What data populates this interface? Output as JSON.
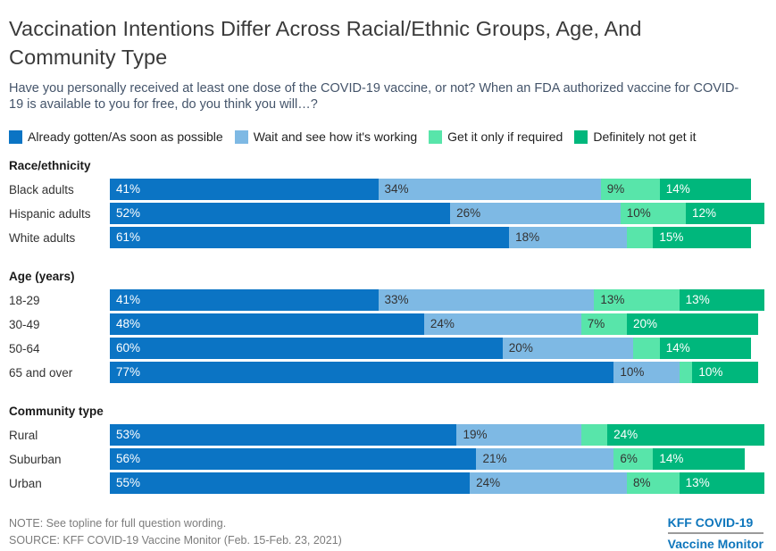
{
  "header": {
    "title": "Vaccination Intentions Differ Across Racial/Ethnic Groups, Age, And Community Type",
    "subtitle": "Have you personally received at least one dose of the COVID-19 vaccine, or not? When an FDA authorized vaccine for COVID-19 is available to you for free, do you think you will…?"
  },
  "chart_data": {
    "type": "bar",
    "orientation": "horizontal",
    "stacked": true,
    "x_max": 100,
    "legend_position": "top",
    "series": [
      {
        "name": "Already gotten/As soon as possible",
        "color": "#0b74c4",
        "text_color": "#ffffff"
      },
      {
        "name": "Wait and see how it's working",
        "color": "#7eb9e4",
        "text_color": "#333333"
      },
      {
        "name": "Get it only if required",
        "color": "#58e5aa",
        "text_color": "#333333"
      },
      {
        "name": "Definitely not get it",
        "color": "#00b77c",
        "text_color": "#ffffff"
      }
    ],
    "groups": [
      {
        "label": "Race/ethnicity",
        "rows": [
          {
            "label": "Black adults",
            "values": [
              41,
              34,
              9,
              14
            ],
            "labels": [
              "41%",
              "34%",
              "9%",
              "14%"
            ]
          },
          {
            "label": "Hispanic adults",
            "values": [
              52,
              26,
              10,
              12
            ],
            "labels": [
              "52%",
              "26%",
              "10%",
              "12%"
            ]
          },
          {
            "label": "White adults",
            "values": [
              61,
              18,
              4,
              15
            ],
            "labels": [
              "61%",
              "18%",
              "",
              "15%"
            ]
          }
        ]
      },
      {
        "label": "Age (years)",
        "rows": [
          {
            "label": "18-29",
            "values": [
              41,
              33,
              13,
              13
            ],
            "labels": [
              "41%",
              "33%",
              "13%",
              "13%"
            ]
          },
          {
            "label": "30-49",
            "values": [
              48,
              24,
              7,
              20
            ],
            "labels": [
              "48%",
              "24%",
              "7%",
              "20%"
            ]
          },
          {
            "label": "50-64",
            "values": [
              60,
              20,
              4,
              14
            ],
            "labels": [
              "60%",
              "20%",
              "",
              "14%"
            ]
          },
          {
            "label": "65 and over",
            "values": [
              77,
              10,
              2,
              10
            ],
            "labels": [
              "77%",
              "10%",
              "",
              "10%"
            ]
          }
        ]
      },
      {
        "label": "Community type",
        "rows": [
          {
            "label": "Rural",
            "values": [
              53,
              19,
              4,
              24
            ],
            "labels": [
              "53%",
              "19%",
              "",
              "24%"
            ]
          },
          {
            "label": "Suburban",
            "values": [
              56,
              21,
              6,
              14
            ],
            "labels": [
              "56%",
              "21%",
              "6%",
              "14%"
            ]
          },
          {
            "label": "Urban",
            "values": [
              55,
              24,
              8,
              13
            ],
            "labels": [
              "55%",
              "24%",
              "8%",
              "13%"
            ]
          }
        ]
      }
    ]
  },
  "footer": {
    "note": "NOTE: See topline for full question wording.",
    "source": "SOURCE: KFF COVID-19 Vaccine Monitor (Feb. 15-Feb. 23, 2021)",
    "logo_line1": "KFF COVID-19",
    "logo_line2": "Vaccine Monitor",
    "logo_color": "#0e76bc"
  }
}
